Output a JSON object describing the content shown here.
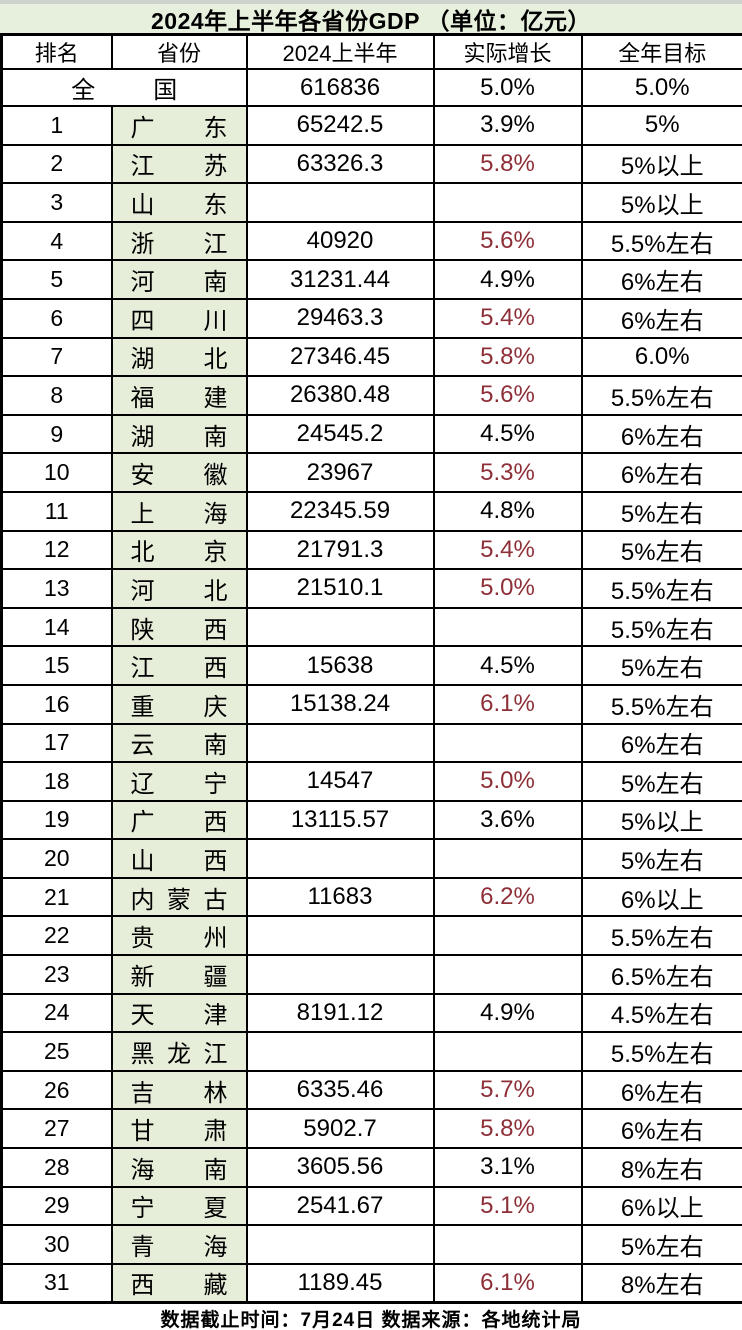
{
  "title": "2024年上半年各省份GDP （单位：亿元）",
  "footer": "数据截止时间：7月24日  数据来源：各地统计局",
  "colors": {
    "header_green": "#e7efdd",
    "cell_green": "#e6eed9",
    "red_growth": "#8e2f38",
    "border_black": "#000000",
    "top_strip_gray": "#cdd2cc"
  },
  "chart_data": {
    "type": "table",
    "title": "2024年上半年各省份GDP （单位：亿元）",
    "columns": [
      "排名",
      "省份",
      "2024上半年",
      "实际增长",
      "全年目标"
    ],
    "national_row": {
      "name": "全国",
      "gdp": "616836",
      "growth": "5.0%",
      "growth_red": false,
      "target": "5.0%"
    },
    "rows": [
      {
        "rank": "1",
        "province": "广东",
        "gdp": "65242.5",
        "growth": "3.9%",
        "growth_red": false,
        "target": "5%"
      },
      {
        "rank": "2",
        "province": "江苏",
        "gdp": "63326.3",
        "growth": "5.8%",
        "growth_red": true,
        "target": "5%以上"
      },
      {
        "rank": "3",
        "province": "山东",
        "gdp": "",
        "growth": "",
        "growth_red": false,
        "target": "5%以上"
      },
      {
        "rank": "4",
        "province": "浙江",
        "gdp": "40920",
        "growth": "5.6%",
        "growth_red": true,
        "target": "5.5%左右"
      },
      {
        "rank": "5",
        "province": "河南",
        "gdp": "31231.44",
        "growth": "4.9%",
        "growth_red": false,
        "target": "6%左右"
      },
      {
        "rank": "6",
        "province": "四川",
        "gdp": "29463.3",
        "growth": "5.4%",
        "growth_red": true,
        "target": "6%左右"
      },
      {
        "rank": "7",
        "province": "湖北",
        "gdp": "27346.45",
        "growth": "5.8%",
        "growth_red": true,
        "target": "6.0%"
      },
      {
        "rank": "8",
        "province": "福建",
        "gdp": "26380.48",
        "growth": "5.6%",
        "growth_red": true,
        "target": "5.5%左右"
      },
      {
        "rank": "9",
        "province": "湖南",
        "gdp": "24545.2",
        "growth": "4.5%",
        "growth_red": false,
        "target": "6%左右"
      },
      {
        "rank": "10",
        "province": "安徽",
        "gdp": "23967",
        "growth": "5.3%",
        "growth_red": true,
        "target": "6%左右"
      },
      {
        "rank": "11",
        "province": "上海",
        "gdp": "22345.59",
        "growth": "4.8%",
        "growth_red": false,
        "target": "5%左右"
      },
      {
        "rank": "12",
        "province": "北京",
        "gdp": "21791.3",
        "growth": "5.4%",
        "growth_red": true,
        "target": "5%左右"
      },
      {
        "rank": "13",
        "province": "河北",
        "gdp": "21510.1",
        "growth": "5.0%",
        "growth_red": true,
        "target": "5.5%左右"
      },
      {
        "rank": "14",
        "province": "陕西",
        "gdp": "",
        "growth": "",
        "growth_red": false,
        "target": "5.5%左右"
      },
      {
        "rank": "15",
        "province": "江西",
        "gdp": "15638",
        "growth": "4.5%",
        "growth_red": false,
        "target": "5%左右"
      },
      {
        "rank": "16",
        "province": "重庆",
        "gdp": "15138.24",
        "growth": "6.1%",
        "growth_red": true,
        "target": "5.5%左右"
      },
      {
        "rank": "17",
        "province": "云南",
        "gdp": "",
        "growth": "",
        "growth_red": false,
        "target": "6%左右"
      },
      {
        "rank": "18",
        "province": "辽宁",
        "gdp": "14547",
        "growth": "5.0%",
        "growth_red": true,
        "target": "5%左右"
      },
      {
        "rank": "19",
        "province": "广西",
        "gdp": "13115.57",
        "growth": "3.6%",
        "growth_red": false,
        "target": "5%以上"
      },
      {
        "rank": "20",
        "province": "山西",
        "gdp": "",
        "growth": "",
        "growth_red": false,
        "target": "5%左右"
      },
      {
        "rank": "21",
        "province": "内蒙古",
        "gdp": "11683",
        "growth": "6.2%",
        "growth_red": true,
        "target": "6%以上"
      },
      {
        "rank": "22",
        "province": "贵州",
        "gdp": "",
        "growth": "",
        "growth_red": false,
        "target": "5.5%左右"
      },
      {
        "rank": "23",
        "province": "新疆",
        "gdp": "",
        "growth": "",
        "growth_red": false,
        "target": "6.5%左右"
      },
      {
        "rank": "24",
        "province": "天津",
        "gdp": "8191.12",
        "growth": "4.9%",
        "growth_red": false,
        "target": "4.5%左右"
      },
      {
        "rank": "25",
        "province": "黑龙江",
        "gdp": "",
        "growth": "",
        "growth_red": false,
        "target": "5.5%左右"
      },
      {
        "rank": "26",
        "province": "吉林",
        "gdp": "6335.46",
        "growth": "5.7%",
        "growth_red": true,
        "target": "6%左右"
      },
      {
        "rank": "27",
        "province": "甘肃",
        "gdp": "5902.7",
        "growth": "5.8%",
        "growth_red": true,
        "target": "6%左右"
      },
      {
        "rank": "28",
        "province": "海南",
        "gdp": "3605.56",
        "growth": "3.1%",
        "growth_red": false,
        "target": "8%左右"
      },
      {
        "rank": "29",
        "province": "宁夏",
        "gdp": "2541.67",
        "growth": "5.1%",
        "growth_red": true,
        "target": "6%以上"
      },
      {
        "rank": "30",
        "province": "青海",
        "gdp": "",
        "growth": "",
        "growth_red": false,
        "target": "5%左右"
      },
      {
        "rank": "31",
        "province": "西藏",
        "gdp": "1189.45",
        "growth": "6.1%",
        "growth_red": true,
        "target": "8%左右"
      }
    ]
  }
}
